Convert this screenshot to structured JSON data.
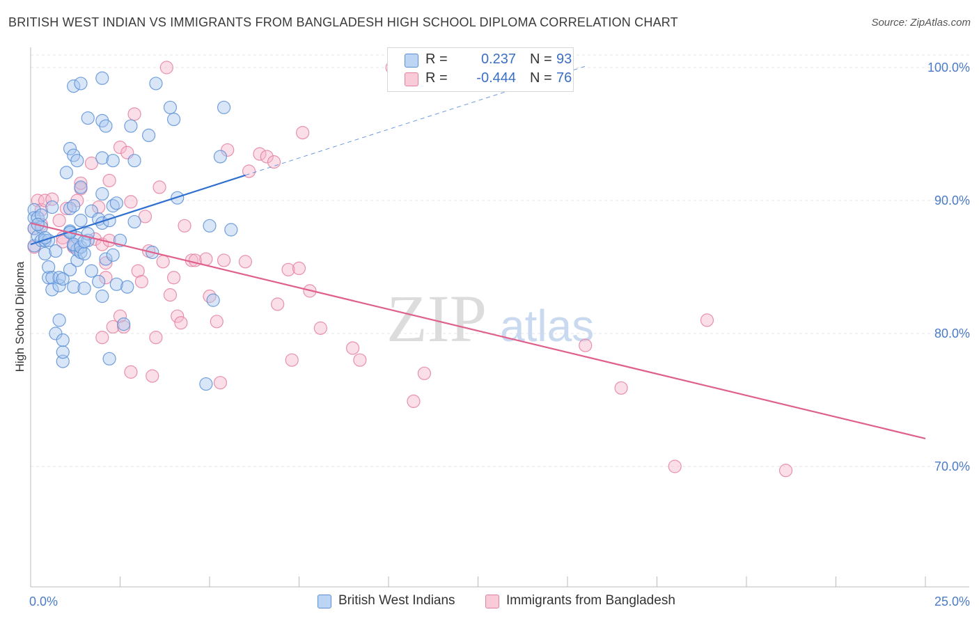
{
  "title": "BRITISH WEST INDIAN VS IMMIGRANTS FROM BANGLADESH HIGH SCHOOL DIPLOMA CORRELATION CHART",
  "source": "Source: ZipAtlas.com",
  "watermark": {
    "zip": "ZIP",
    "atlas": "atlas"
  },
  "legend_top": {
    "rows": [
      {
        "r_label": "R =",
        "r_value": "0.237",
        "n_label": "N =",
        "n_value": "93"
      },
      {
        "r_label": "R =",
        "r_value": "-0.444",
        "n_label": "N =",
        "n_value": "76"
      }
    ]
  },
  "colors": {
    "blue_fill": "#a9c8f0",
    "blue_stroke": "#5b8fd6",
    "blue_line": "#2f6fd0",
    "pink_fill": "#f7b9cc",
    "pink_stroke": "#e47fa0",
    "pink_line": "#e0608c",
    "tick_text": "#4a7bc8",
    "grid": "#e4e4e4"
  },
  "chart_data": {
    "type": "scatter",
    "title": "BRITISH WEST INDIAN VS IMMIGRANTS FROM BANGLADESH HIGH SCHOOL DIPLOMA CORRELATION CHART",
    "xlabel": "",
    "ylabel": "High School Diploma",
    "xlim": [
      0,
      26.5
    ],
    "ylim": [
      60.3,
      100.6
    ],
    "x_ticks_labeled": [
      "0.0%",
      "25.0%"
    ],
    "y_ticks": [
      {
        "value": 70,
        "label": "70.0%"
      },
      {
        "value": 80,
        "label": "80.0%"
      },
      {
        "value": 90,
        "label": "90.0%"
      },
      {
        "value": 100,
        "label": "100.0%"
      }
    ],
    "x_minor_ticks": [
      0,
      2.5,
      5,
      7.5,
      10,
      12.5,
      15,
      17.5,
      20,
      22.5,
      25
    ],
    "series": [
      {
        "name": "British West Indians",
        "R": 0.237,
        "N": 93,
        "trend": {
          "x0": 0,
          "y0": 86.7,
          "x1": 6.0,
          "y1": 91.9,
          "dash_x1": 15.5,
          "dash_y1": 100.1
        },
        "points": [
          [
            0.1,
            86.6
          ],
          [
            0.1,
            89.3
          ],
          [
            0.1,
            88.7
          ],
          [
            0.1,
            87.9
          ],
          [
            0.2,
            88.7
          ],
          [
            0.2,
            87.3
          ],
          [
            0.3,
            87.0
          ],
          [
            0.3,
            88.0
          ],
          [
            0.3,
            88.9
          ],
          [
            0.4,
            86.0
          ],
          [
            0.4,
            87.0
          ],
          [
            0.5,
            87.0
          ],
          [
            0.5,
            84.2
          ],
          [
            0.5,
            85.0
          ],
          [
            0.6,
            89.5
          ],
          [
            0.6,
            84.2
          ],
          [
            0.6,
            83.3
          ],
          [
            0.7,
            86.2
          ],
          [
            0.7,
            80.0
          ],
          [
            0.8,
            83.6
          ],
          [
            0.8,
            84.2
          ],
          [
            0.8,
            81.0
          ],
          [
            0.9,
            84.1
          ],
          [
            0.9,
            77.9
          ],
          [
            0.9,
            78.6
          ],
          [
            0.9,
            79.5
          ],
          [
            1.0,
            92.1
          ],
          [
            1.1,
            84.8
          ],
          [
            1.1,
            89.4
          ],
          [
            1.1,
            87.6
          ],
          [
            1.2,
            89.6
          ],
          [
            1.2,
            86.6
          ],
          [
            1.2,
            83.5
          ],
          [
            1.3,
            85.5
          ],
          [
            1.3,
            86.3
          ],
          [
            1.3,
            87.2
          ],
          [
            1.2,
            86.7
          ],
          [
            1.1,
            87.7
          ],
          [
            1.1,
            87.6
          ],
          [
            1.1,
            93.9
          ],
          [
            1.2,
            98.6
          ],
          [
            1.2,
            93.4
          ],
          [
            1.3,
            93.0
          ],
          [
            1.4,
            86.1
          ],
          [
            1.4,
            86.5
          ],
          [
            1.4,
            98.8
          ],
          [
            1.4,
            91.0
          ],
          [
            1.4,
            88.5
          ],
          [
            1.5,
            83.4
          ],
          [
            1.5,
            86.0
          ],
          [
            1.6,
            87.0
          ],
          [
            1.6,
            87.5
          ],
          [
            1.6,
            96.2
          ],
          [
            1.7,
            84.7
          ],
          [
            1.7,
            89.2
          ],
          [
            1.9,
            88.6
          ],
          [
            1.9,
            83.9
          ],
          [
            2.0,
            99.2
          ],
          [
            2.0,
            96.0
          ],
          [
            2.0,
            88.3
          ],
          [
            2.0,
            82.8
          ],
          [
            2.0,
            90.5
          ],
          [
            2.0,
            93.2
          ],
          [
            2.1,
            85.6
          ],
          [
            2.1,
            95.6
          ],
          [
            2.2,
            78.1
          ],
          [
            2.2,
            88.5
          ],
          [
            2.3,
            89.6
          ],
          [
            2.3,
            93.0
          ],
          [
            2.3,
            85.9
          ],
          [
            2.4,
            89.8
          ],
          [
            2.4,
            83.7
          ],
          [
            2.5,
            87.0
          ],
          [
            2.6,
            80.7
          ],
          [
            2.7,
            83.5
          ],
          [
            2.8,
            95.6
          ],
          [
            2.9,
            93.0
          ],
          [
            2.9,
            88.4
          ],
          [
            3.3,
            94.9
          ],
          [
            3.4,
            86.1
          ],
          [
            3.5,
            98.8
          ],
          [
            3.9,
            97.0
          ],
          [
            4.0,
            96.1
          ],
          [
            4.1,
            90.2
          ],
          [
            4.9,
            76.2
          ],
          [
            5.0,
            88.1
          ],
          [
            5.1,
            82.5
          ],
          [
            5.3,
            93.3
          ],
          [
            5.4,
            97.0
          ],
          [
            5.6,
            87.8
          ],
          [
            0.2,
            88.2
          ],
          [
            0.4,
            87.2
          ],
          [
            1.5,
            86.9
          ]
        ]
      },
      {
        "name": "Immigrants from Bangladesh",
        "R": -0.444,
        "N": 76,
        "trend": {
          "x0": 0,
          "y0": 88.3,
          "x1": 25.0,
          "y1": 72.1
        },
        "points": [
          [
            0.1,
            87.9
          ],
          [
            0.1,
            86.5
          ],
          [
            0.2,
            90.0
          ],
          [
            0.3,
            89.3
          ],
          [
            0.3,
            88.2
          ],
          [
            0.4,
            90.0
          ],
          [
            0.6,
            90.1
          ],
          [
            0.8,
            88.5
          ],
          [
            0.9,
            87.2
          ],
          [
            0.9,
            86.9
          ],
          [
            1.0,
            89.4
          ],
          [
            1.2,
            86.5
          ],
          [
            1.3,
            90.0
          ],
          [
            1.4,
            90.9
          ],
          [
            1.4,
            91.3
          ],
          [
            1.7,
            92.8
          ],
          [
            1.8,
            87.1
          ],
          [
            1.9,
            89.5
          ],
          [
            2.0,
            86.7
          ],
          [
            2.0,
            79.7
          ],
          [
            2.1,
            85.3
          ],
          [
            2.1,
            84.2
          ],
          [
            2.2,
            87.0
          ],
          [
            2.2,
            91.5
          ],
          [
            2.3,
            80.5
          ],
          [
            2.5,
            94.0
          ],
          [
            2.5,
            81.3
          ],
          [
            2.6,
            80.5
          ],
          [
            2.7,
            93.6
          ],
          [
            2.8,
            77.1
          ],
          [
            2.8,
            89.9
          ],
          [
            2.9,
            96.5
          ],
          [
            3.0,
            84.7
          ],
          [
            3.1,
            83.9
          ],
          [
            3.2,
            88.8
          ],
          [
            3.3,
            86.2
          ],
          [
            3.4,
            76.8
          ],
          [
            3.5,
            79.7
          ],
          [
            3.6,
            91.0
          ],
          [
            3.7,
            85.4
          ],
          [
            3.8,
            100.0
          ],
          [
            3.9,
            82.9
          ],
          [
            4.0,
            84.2
          ],
          [
            4.1,
            81.3
          ],
          [
            4.2,
            80.8
          ],
          [
            4.3,
            88.1
          ],
          [
            4.5,
            85.5
          ],
          [
            4.6,
            85.5
          ],
          [
            4.9,
            85.6
          ],
          [
            5.0,
            82.8
          ],
          [
            5.2,
            80.9
          ],
          [
            5.3,
            76.3
          ],
          [
            5.4,
            85.5
          ],
          [
            5.5,
            93.8
          ],
          [
            6.0,
            85.4
          ],
          [
            6.1,
            92.2
          ],
          [
            6.4,
            93.5
          ],
          [
            6.6,
            93.3
          ],
          [
            6.8,
            92.9
          ],
          [
            6.9,
            82.2
          ],
          [
            7.2,
            84.8
          ],
          [
            7.3,
            78.0
          ],
          [
            7.5,
            84.9
          ],
          [
            7.6,
            95.1
          ],
          [
            7.8,
            83.2
          ],
          [
            8.1,
            80.4
          ],
          [
            9.0,
            78.9
          ],
          [
            9.2,
            78.0
          ],
          [
            10.1,
            100.0
          ],
          [
            10.7,
            74.9
          ],
          [
            11.0,
            77.0
          ],
          [
            15.5,
            79.1
          ],
          [
            16.5,
            75.9
          ],
          [
            18.0,
            70.0
          ],
          [
            18.9,
            81.0
          ],
          [
            21.1,
            69.7
          ]
        ]
      }
    ],
    "legend_position": "bottom-center"
  },
  "bottom_legend": [
    {
      "label": "British West Indians"
    },
    {
      "label": "Immigrants from Bangladesh"
    }
  ]
}
